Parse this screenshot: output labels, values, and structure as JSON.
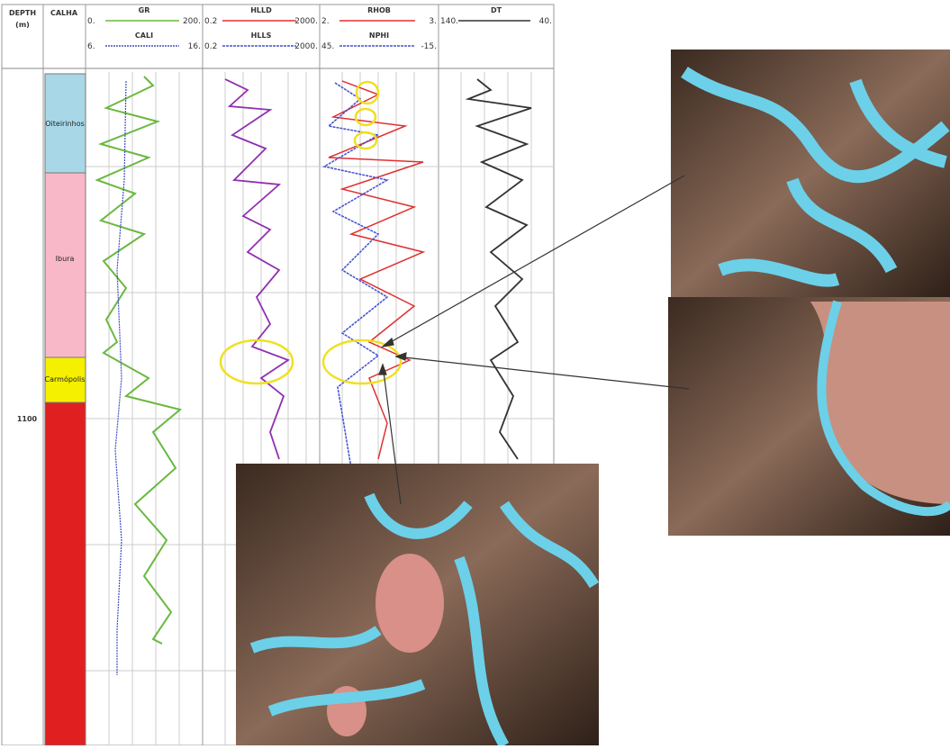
{
  "header": {
    "depth": "DEPTH",
    "depth_unit": "(m)",
    "calha": "CALHA"
  },
  "tracks": [
    {
      "curves": [
        {
          "name": "GR",
          "min": "0.",
          "max": "200."
        },
        {
          "name": "CALI",
          "min": "6.",
          "max": "16."
        }
      ]
    },
    {
      "curves": [
        {
          "name": "HLLD",
          "min": "0.2",
          "max": "2000."
        },
        {
          "name": "HLLS",
          "min": "0.2",
          "max": "2000."
        }
      ]
    },
    {
      "curves": [
        {
          "name": "RHOB",
          "min": "2.",
          "max": "3."
        },
        {
          "name": "NPHI",
          "min": "45.",
          "max": "-15."
        }
      ]
    },
    {
      "curves": [
        {
          "name": "DT",
          "min": "140.",
          "max": "40."
        }
      ]
    }
  ],
  "zones": [
    {
      "label": "Oiteirinhos"
    },
    {
      "label": "Ibura"
    },
    {
      "label": "Carmópolis"
    }
  ],
  "depth_marker": "1100"
}
